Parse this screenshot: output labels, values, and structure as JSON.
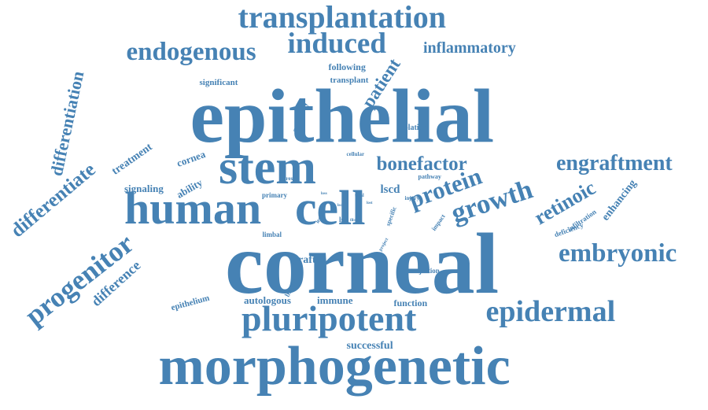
{
  "cloud": {
    "color": "#4682b4",
    "background": "#ffffff",
    "words": [
      {
        "text": "epithelial"
      },
      {
        "text": "corneal"
      },
      {
        "text": "morphogenetic"
      },
      {
        "text": "human"
      },
      {
        "text": "cell"
      },
      {
        "text": "stem"
      },
      {
        "text": "pluripotent"
      },
      {
        "text": "transplantation"
      },
      {
        "text": "induced"
      },
      {
        "text": "endogenous"
      },
      {
        "text": "embryonic"
      },
      {
        "text": "epidermal"
      },
      {
        "text": "engraftment"
      },
      {
        "text": "progenitor"
      },
      {
        "text": "growth"
      },
      {
        "text": "protein"
      },
      {
        "text": "bonefactor"
      },
      {
        "text": "inflammatory"
      },
      {
        "text": "differentiate"
      },
      {
        "text": "differentiation"
      },
      {
        "text": "retinoic"
      },
      {
        "text": "difference"
      },
      {
        "text": "patient"
      },
      {
        "text": "enhancing"
      },
      {
        "text": "treatment"
      },
      {
        "text": "following"
      },
      {
        "text": "transplant"
      },
      {
        "text": "significant"
      },
      {
        "text": "activity"
      },
      {
        "text": "cornea"
      },
      {
        "text": "signaling"
      },
      {
        "text": "ability"
      },
      {
        "text": "lscd"
      },
      {
        "text": "graft"
      },
      {
        "text": "autologous"
      },
      {
        "text": "immune"
      },
      {
        "text": "function"
      },
      {
        "text": "successful"
      },
      {
        "text": "epithelium"
      },
      {
        "text": "isolation"
      },
      {
        "text": "infiltration"
      },
      {
        "text": "deficiency"
      },
      {
        "text": "rejection"
      },
      {
        "text": "limbal"
      },
      {
        "text": "primary"
      },
      {
        "text": "pathway"
      },
      {
        "text": "cellular"
      },
      {
        "text": "bilateral"
      },
      {
        "text": "impact"
      },
      {
        "text": "specific"
      },
      {
        "text": "lsc"
      },
      {
        "text": "lescs"
      },
      {
        "text": "injury"
      },
      {
        "text": "result"
      },
      {
        "text": "project"
      },
      {
        "text": "total"
      },
      {
        "text": "loss"
      },
      {
        "text": "lsca"
      },
      {
        "text": "fibro"
      },
      {
        "text": "lost"
      }
    ]
  }
}
